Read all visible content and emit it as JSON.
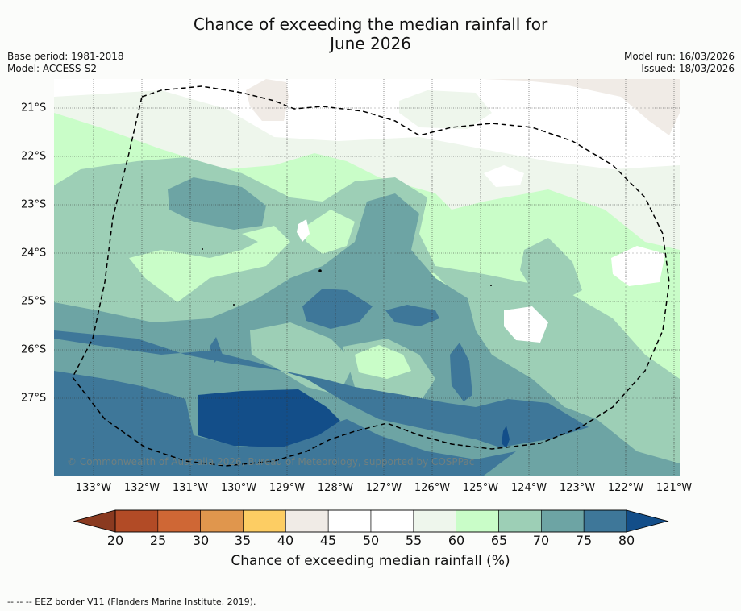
{
  "title_line1": "Chance of exceeding the median rainfall for",
  "title_line2": "June 2026",
  "base_period": "Base period: 1981-2018",
  "model": "Model: ACCESS-S2",
  "model_run": "Model run: 16/03/2026",
  "issued": "Issued: 18/03/2026",
  "lon_labels": [
    "133°W",
    "132°W",
    "131°W",
    "130°W",
    "129°W",
    "128°W",
    "127°W",
    "126°W",
    "125°W",
    "124°W",
    "123°W",
    "122°W",
    "121°W"
  ],
  "lat_labels": [
    "21°S",
    "22°S",
    "23°S",
    "24°S",
    "25°S",
    "26°S",
    "27°S"
  ],
  "copyright": "© Commonwealth of Australia 2026, Bureau of Meteorology, supported by COSPPac",
  "colorbar": {
    "ticks": [
      "20",
      "25",
      "30",
      "35",
      "40",
      "45",
      "50",
      "55",
      "60",
      "65",
      "70",
      "75",
      "80"
    ],
    "colors": [
      "#b24b26",
      "#cf6735",
      "#e0964d",
      "#fdcd63",
      "#f0ebe6",
      "#ffffff",
      "#ffffff",
      "#eef6ec",
      "#c9fdc8",
      "#9dcfb6",
      "#6da4a4",
      "#3e7799"
    ],
    "under_color": "#8a3a20",
    "over_color": "#134e89",
    "title": "Chance of exceeding median rainfall (%)"
  },
  "footer": "--  --  -- EEZ border V11 (Flanders Marine Institute, 2019)."
}
